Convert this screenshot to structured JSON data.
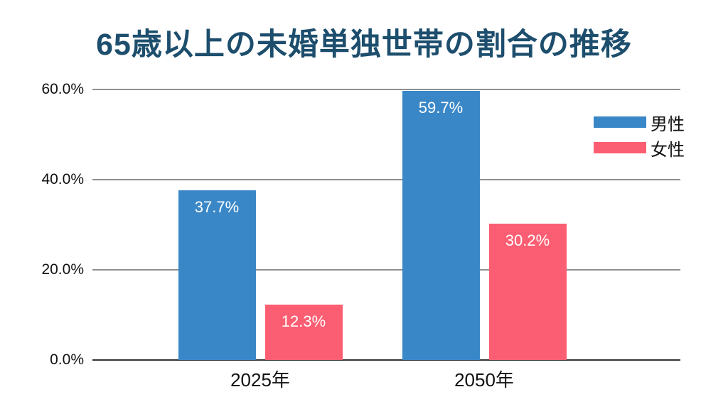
{
  "page": {
    "background": "#ffffff"
  },
  "chart_data": {
    "type": "bar",
    "title": "65歳以上の未婚単独世帯の割合の推移",
    "categories": [
      "2025年",
      "2050年"
    ],
    "series": [
      {
        "name": "男性",
        "color": "#3a87c8",
        "values": [
          37.7,
          59.7
        ],
        "labels": [
          "37.7%",
          "59.7%"
        ]
      },
      {
        "name": "女性",
        "color": "#fb5e72",
        "values": [
          12.3,
          30.2
        ],
        "labels": [
          "12.3%",
          "30.2%"
        ]
      }
    ],
    "yticks": [
      {
        "label": "0.0%",
        "value": 0
      },
      {
        "label": "20.0%",
        "value": 20
      },
      {
        "label": "40.0%",
        "value": 40
      },
      {
        "label": "60.0%",
        "value": 60
      }
    ],
    "ylim": [
      0,
      60
    ],
    "xlabel": "",
    "ylabel": "",
    "grid": true,
    "legend_position": "top-right",
    "colors": {
      "title": "#1d4e6d",
      "grid": "#8f8f8f",
      "axis": "#333333",
      "tick_text": "#111111",
      "bar_label_text": "#ffffff"
    }
  }
}
